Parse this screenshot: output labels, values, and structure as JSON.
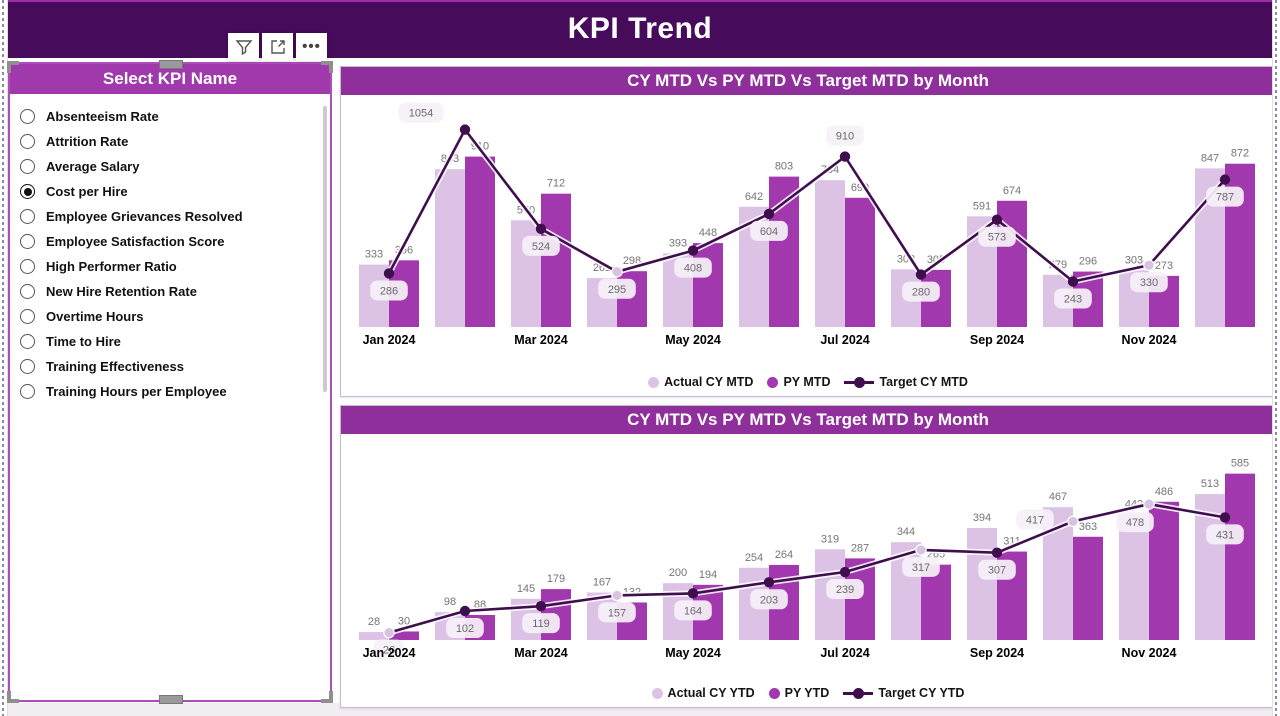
{
  "page": {
    "title": "KPI Trend"
  },
  "colors": {
    "header_bg": "#470B5C",
    "chart_title_bg": "#8F2F9B",
    "slicer_title_bg": "#A03AAC",
    "actual_bar": "#DCC3E6",
    "py_bar": "#A138AD",
    "target_line": "#3F0F4D",
    "light_marker": "#D9C3E2",
    "bar_label_gray": "#757575",
    "target_label_box_bg": "#F6F0F8",
    "target_label_text": "#6B6B6B",
    "page_edge_accent": "#A12BAB"
  },
  "toolbar": {
    "icons": [
      "filter-icon",
      "focus-mode-icon",
      "more-options-icon"
    ]
  },
  "slicer": {
    "title": "Select KPI Name",
    "selected": "Cost per Hire",
    "items": [
      "Absenteeism Rate",
      "Attrition Rate",
      "Average Salary",
      "Cost per Hire",
      "Employee Grievances Resolved",
      "Employee Satisfaction Score",
      "High Performer Ratio",
      "New Hire Retention Rate",
      "Overtime Hours",
      "Time to Hire",
      "Training Effectiveness",
      "Training Hours per Employee"
    ]
  },
  "chart_data": [
    {
      "type": "bar",
      "subtype": "clustered-column-with-line",
      "title": "CY MTD Vs PY MTD Vs Target MTD by Month",
      "categories": [
        "Jan 2024",
        "Feb 2024",
        "Mar 2024",
        "Apr 2024",
        "May 2024",
        "Jun 2024",
        "Jul 2024",
        "Aug 2024",
        "Sep 2024",
        "Oct 2024",
        "Nov 2024",
        "Dec 2024"
      ],
      "x_ticks": [
        "Jan 2024",
        "Mar 2024",
        "May 2024",
        "Jul 2024",
        "Sep 2024",
        "Nov 2024"
      ],
      "series": [
        {
          "name": "Actual CY MTD",
          "type": "bar",
          "values": [
            333,
            843,
            570,
            261,
            393,
            642,
            784,
            308,
            591,
            279,
            303,
            847
          ]
        },
        {
          "name": "PY MTD",
          "type": "bar",
          "values": [
            356,
            910,
            712,
            298,
            448,
            803,
            690,
            305,
            674,
            296,
            273,
            872
          ]
        },
        {
          "name": "Target CY MTD",
          "type": "line",
          "values": [
            286,
            1054,
            524,
            295,
            408,
            604,
            910,
            280,
            573,
            243,
            330,
            787
          ]
        }
      ],
      "ylim": [
        0,
        1100
      ],
      "grid": false,
      "legend_position": "bottom",
      "light_marker_indices": [
        3,
        10
      ],
      "target_label_nudges": {
        "1": [
          -44,
          -34
        ],
        "6": [
          0,
          -38
        ]
      }
    },
    {
      "type": "bar",
      "subtype": "clustered-column-with-line",
      "title": "CY MTD Vs PY MTD Vs Target MTD by Month",
      "categories": [
        "Jan 2024",
        "Feb 2024",
        "Mar 2024",
        "Apr 2024",
        "May 2024",
        "Jun 2024",
        "Jul 2024",
        "Aug 2024",
        "Sep 2024",
        "Oct 2024",
        "Nov 2024",
        "Dec 2024"
      ],
      "x_ticks": [
        "Jan 2024",
        "Mar 2024",
        "May 2024",
        "Jul 2024",
        "Sep 2024",
        "Nov 2024"
      ],
      "series": [
        {
          "name": "Actual CY YTD",
          "type": "bar",
          "values": [
            28,
            98,
            145,
            167,
            200,
            254,
            319,
            344,
            394,
            467,
            442,
            513
          ]
        },
        {
          "name": "PY YTD",
          "type": "bar",
          "values": [
            30,
            88,
            179,
            132,
            194,
            264,
            287,
            265,
            311,
            363,
            486,
            585
          ]
        },
        {
          "name": "Target CY YTD",
          "type": "line",
          "values": [
            26,
            102,
            119,
            157,
            164,
            203,
            239,
            317,
            307,
            417,
            478,
            431
          ]
        }
      ],
      "ylim": [
        0,
        640
      ],
      "grid": false,
      "legend_position": "bottom",
      "light_marker_indices": [
        0,
        3,
        7,
        9,
        10
      ],
      "target_label_nudges": {
        "9": [
          -38,
          -19
        ],
        "10": [
          -14,
          1
        ]
      }
    }
  ]
}
